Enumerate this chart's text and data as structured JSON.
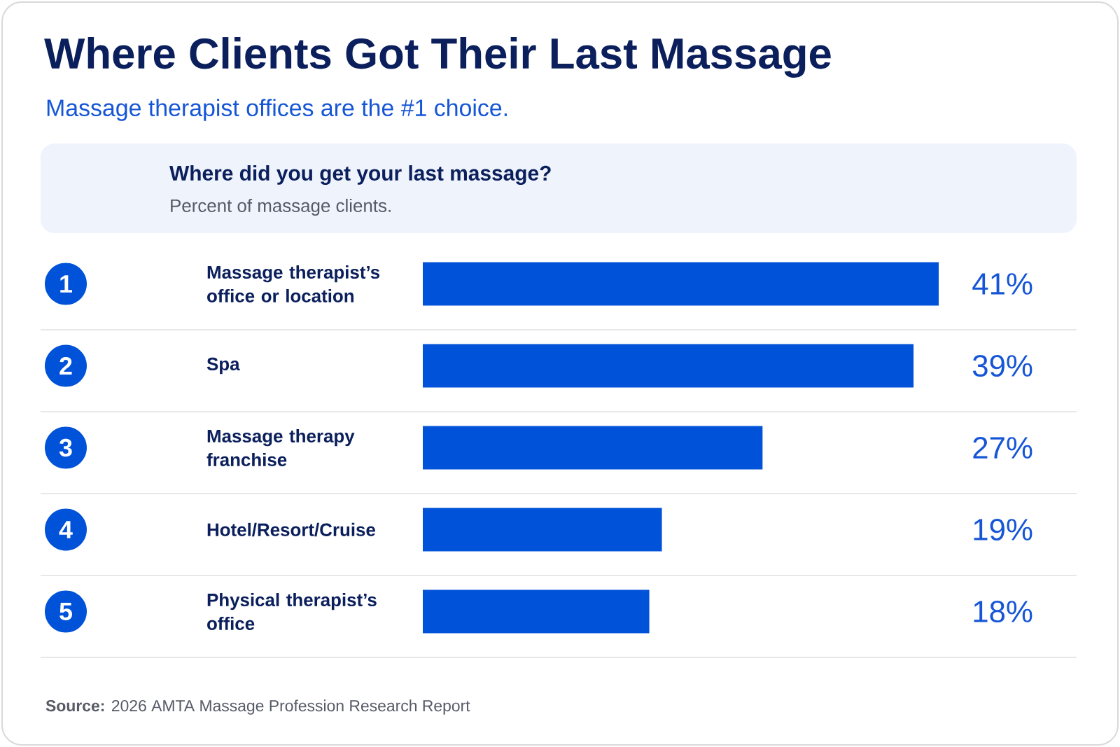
{
  "chart_data": {
    "type": "bar",
    "orientation": "horizontal",
    "title": "Where Clients Got Their Last Massage",
    "subtitle": "Massage therapist offices are the #1 choice.",
    "categories": [
      "Massage therapist’s office or location",
      "Spa",
      "Massage therapy franchise",
      "Hotel/Resort/Cruise",
      "Physical therapist’s office"
    ],
    "values": [
      41,
      39,
      27,
      19,
      18
    ],
    "value_labels": [
      "41%",
      "39%",
      "27%",
      "19%",
      "18%"
    ],
    "color": "#0052d9",
    "xlim": [
      0,
      41
    ],
    "grid": "y",
    "annotations": [
      "Where did you get your last massage?",
      "Percent of massage clients.",
      "**Source:** 2026 AMTA Massage Profession Research Report",
      "1",
      "2",
      "3",
      "4",
      "5"
    ]
  }
}
